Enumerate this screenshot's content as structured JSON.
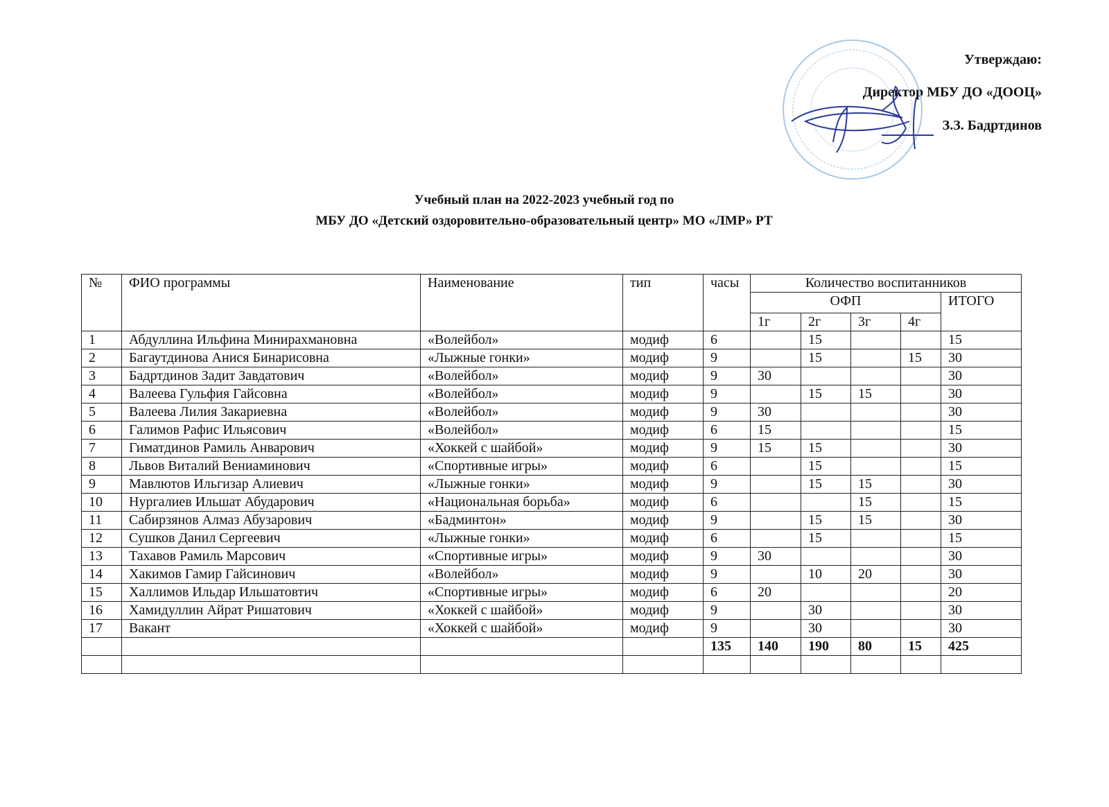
{
  "approval": {
    "line1": "Утверждаю:",
    "line2": "Директор МБУ ДО «ДООЦ»",
    "line3": "З.З. Бадртдинов"
  },
  "title": {
    "line1": "Учебный план   на 2022-2023 учебный год по",
    "line2": "МБУ ДО «Детский оздоровительно-образовательный центр» МО «ЛМР» РТ"
  },
  "table": {
    "headers": {
      "num": "№",
      "fio": "ФИО программы",
      "name": "Наименование",
      "type": "тип",
      "hours": "часы",
      "count": "Количество воспитанников",
      "ofp": "ОФП",
      "total": "ИТОГО",
      "g1": "1г",
      "g2": "2г",
      "g3": "3г",
      "g4": "4г"
    },
    "rows": [
      [
        "1",
        "Абдуллина Ильфина Минирахмановна",
        "«Волейбол»",
        "модиф",
        "6",
        "",
        "15",
        "",
        "",
        "15"
      ],
      [
        "2",
        "Багаутдинова Анися Бинарисовна",
        "«Лыжные гонки»",
        "модиф",
        "9",
        "",
        "15",
        "",
        "15",
        "30"
      ],
      [
        "3",
        "Бадртдинов Задит Завдатович",
        "«Волейбол»",
        "модиф",
        "9",
        "30",
        "",
        "",
        "",
        "30"
      ],
      [
        "4",
        "Валеева Гульфия Гайсовна",
        "«Волейбол»",
        "модиф",
        "9",
        "",
        "15",
        "15",
        "",
        "30"
      ],
      [
        "5",
        "Валеева Лилия Закариевна",
        "«Волейбол»",
        "модиф",
        "9",
        "30",
        "",
        "",
        "",
        "30"
      ],
      [
        "6",
        "Галимов Рафис Ильясович",
        "«Волейбол»",
        "модиф",
        "6",
        "15",
        "",
        "",
        "",
        "15"
      ],
      [
        "7",
        "Гиматдинов Рамиль Анварович",
        "«Хоккей с шайбой»",
        "модиф",
        "9",
        "15",
        "15",
        "",
        "",
        "30"
      ],
      [
        "8",
        "Львов Виталий Вениаминович",
        "«Спортивные игры»",
        "модиф",
        "6",
        "",
        "15",
        "",
        "",
        "15"
      ],
      [
        "9",
        "Мавлютов Ильгизар  Алиевич",
        "«Лыжные гонки»",
        "модиф",
        "9",
        "",
        "15",
        "15",
        "",
        "30"
      ],
      [
        "10",
        "Нургалиев Ильшат Абударович",
        "«Национальная борьба»",
        "модиф",
        "6",
        "",
        "",
        "15",
        "",
        "15"
      ],
      [
        "11",
        "Сабирзянов Алмаз Абузарович",
        "«Бадминтон»",
        "модиф",
        "9",
        "",
        "15",
        "15",
        "",
        "30"
      ],
      [
        "12",
        "Сушков Данил Сергеевич",
        "«Лыжные гонки»",
        "модиф",
        "6",
        "",
        "15",
        "",
        "",
        "15"
      ],
      [
        "13",
        "Тахавов Рамиль Марсович",
        "«Спортивные игры»",
        "модиф",
        "9",
        "30",
        "",
        "",
        "",
        "30"
      ],
      [
        "14",
        "Хакимов Гамир  Гайсинович",
        "«Волейбол»",
        "модиф",
        "9",
        "",
        "10",
        "20",
        "",
        "30"
      ],
      [
        "15",
        "Халлимов Ильдар Ильшатовтич",
        "«Спортивные игры»",
        "модиф",
        "6",
        "20",
        "",
        "",
        "",
        "20"
      ],
      [
        "16",
        "Хамидуллин Айрат Ришатович",
        "«Хоккей с шайбой»",
        "модиф",
        "9",
        "",
        "30",
        "",
        "",
        "30"
      ],
      [
        "17",
        "Вакант",
        "«Хоккей с шайбой»",
        "модиф",
        "9",
        "",
        "30",
        "",
        "",
        "30"
      ]
    ],
    "totals": [
      "",
      "",
      "",
      "",
      "135",
      "140",
      "190",
      "80",
      "15",
      "425"
    ]
  },
  "colors": {
    "stamp": "#8fb8d8",
    "signature": "#2a3a9a",
    "ink": "#111111"
  }
}
